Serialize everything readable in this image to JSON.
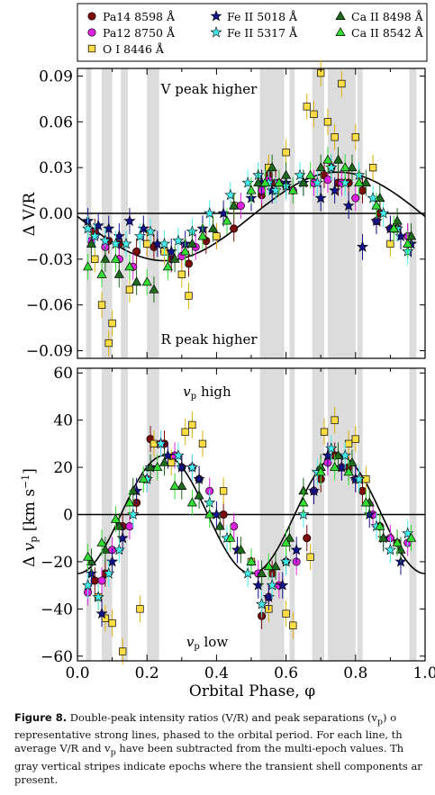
{
  "chart_data": [
    {
      "type": "scatter",
      "panel": "top",
      "ylabel": "Δ V/R",
      "ylim": [
        -0.095,
        0.095
      ],
      "yticks": [
        -0.09,
        -0.06,
        -0.03,
        0.0,
        0.03,
        0.06,
        0.09
      ],
      "xlim": [
        0.0,
        1.0
      ],
      "grid": false,
      "annotations": [
        "V peak higher",
        "R peak higher"
      ],
      "model_curve": {
        "amplitude": 0.029,
        "offset": -0.002,
        "phase_of_max": 0.75
      },
      "series": [
        {
          "name": "Pa14 8598 Å",
          "marker": "circle",
          "color": "#7a0c0c",
          "x": [
            0.05,
            0.09,
            0.12,
            0.17,
            0.22,
            0.27,
            0.32,
            0.37,
            0.45,
            0.53,
            0.55,
            0.57,
            0.6,
            0.68,
            0.71,
            0.73,
            0.75,
            0.78,
            0.82,
            0.87,
            0.92,
            0.95
          ],
          "y": [
            -0.012,
            -0.018,
            -0.02,
            -0.025,
            -0.022,
            -0.03,
            -0.033,
            -0.018,
            -0.01,
            0.012,
            0.025,
            0.02,
            0.018,
            0.02,
            0.025,
            0.03,
            0.02,
            0.02,
            0.015,
            0.0,
            -0.01,
            -0.015
          ]
        },
        {
          "name": "Pa12 8750 Å",
          "marker": "circle",
          "color": "#dd22dd",
          "x": [
            0.04,
            0.08,
            0.12,
            0.16,
            0.2,
            0.25,
            0.3,
            0.34,
            0.4,
            0.47,
            0.53,
            0.55,
            0.58,
            0.62,
            0.68,
            0.72,
            0.76,
            0.8,
            0.86,
            0.9,
            0.95
          ],
          "y": [
            -0.018,
            -0.022,
            -0.03,
            -0.035,
            -0.02,
            -0.025,
            -0.028,
            -0.022,
            -0.015,
            0.005,
            0.015,
            0.022,
            0.02,
            0.015,
            0.02,
            0.022,
            0.02,
            0.01,
            -0.005,
            -0.01,
            -0.015
          ]
        },
        {
          "name": "O I 8446 Å",
          "marker": "square",
          "color": "#ffdd44",
          "x": [
            0.05,
            0.07,
            0.09,
            0.1,
            0.15,
            0.2,
            0.25,
            0.3,
            0.32,
            0.4,
            0.45,
            0.55,
            0.6,
            0.66,
            0.68,
            0.7,
            0.72,
            0.74,
            0.76,
            0.8,
            0.85,
            0.9
          ],
          "y": [
            -0.03,
            -0.06,
            -0.085,
            -0.072,
            -0.05,
            -0.02,
            -0.025,
            -0.04,
            -0.054,
            -0.015,
            0.005,
            0.03,
            0.04,
            0.07,
            0.065,
            0.092,
            0.06,
            0.05,
            0.085,
            0.05,
            0.03,
            -0.02
          ]
        },
        {
          "name": "Fe II 5018 Å",
          "marker": "star",
          "color": "#111188",
          "x": [
            0.03,
            0.06,
            0.09,
            0.12,
            0.15,
            0.19,
            0.23,
            0.27,
            0.31,
            0.36,
            0.42,
            0.5,
            0.53,
            0.56,
            0.6,
            0.65,
            0.7,
            0.74,
            0.78,
            0.82,
            0.86,
            0.9,
            0.93,
            0.96
          ],
          "y": [
            -0.005,
            -0.008,
            -0.01,
            -0.015,
            -0.005,
            -0.01,
            -0.02,
            -0.025,
            -0.02,
            -0.01,
            0.0,
            0.01,
            0.02,
            0.015,
            0.02,
            0.02,
            0.01,
            0.015,
            0.005,
            -0.022,
            -0.005,
            -0.01,
            -0.015,
            -0.02
          ]
        },
        {
          "name": "Fe II 5317 Å",
          "marker": "star",
          "color": "#44eeee",
          "x": [
            0.03,
            0.05,
            0.08,
            0.11,
            0.14,
            0.18,
            0.21,
            0.25,
            0.29,
            0.33,
            0.38,
            0.44,
            0.49,
            0.52,
            0.55,
            0.57,
            0.6,
            0.64,
            0.69,
            0.73,
            0.77,
            0.81,
            0.85,
            0.88,
            0.92,
            0.95
          ],
          "y": [
            -0.01,
            -0.015,
            -0.018,
            -0.02,
            -0.02,
            -0.015,
            -0.012,
            -0.02,
            -0.018,
            -0.012,
            0.0,
            0.012,
            0.02,
            0.025,
            0.02,
            0.015,
            0.018,
            0.025,
            0.02,
            0.03,
            0.02,
            0.025,
            0.01,
            0.0,
            -0.01,
            -0.025
          ]
        },
        {
          "name": "Ca II 8498 Å",
          "marker": "triangle",
          "color": "#1e6b1e",
          "x": [
            0.04,
            0.08,
            0.12,
            0.17,
            0.22,
            0.28,
            0.33,
            0.39,
            0.45,
            0.52,
            0.56,
            0.6,
            0.65,
            0.7,
            0.75,
            0.79,
            0.83,
            0.87,
            0.92,
            0.96
          ],
          "y": [
            -0.02,
            -0.03,
            -0.04,
            -0.045,
            -0.05,
            -0.03,
            -0.02,
            -0.01,
            0.005,
            0.02,
            0.03,
            0.025,
            0.02,
            0.03,
            0.035,
            0.03,
            0.02,
            0.01,
            -0.005,
            -0.015
          ]
        },
        {
          "name": "Ca II 8542 Å",
          "marker": "triangle",
          "color": "#33dd33",
          "x": [
            0.03,
            0.07,
            0.11,
            0.15,
            0.2,
            0.26,
            0.31,
            0.36,
            0.43,
            0.5,
            0.54,
            0.58,
            0.62,
            0.67,
            0.72,
            0.77,
            0.81,
            0.86,
            0.91,
            0.95
          ],
          "y": [
            -0.035,
            -0.04,
            -0.03,
            -0.035,
            -0.045,
            -0.035,
            -0.025,
            -0.015,
            -0.005,
            0.015,
            0.02,
            0.02,
            0.015,
            0.025,
            0.035,
            0.03,
            0.02,
            0.005,
            -0.01,
            -0.02
          ]
        }
      ]
    },
    {
      "type": "scatter",
      "panel": "bottom",
      "ylabel": "Δ v_p [km s⁻¹]",
      "xlabel": "Orbital Phase, φ",
      "ylim": [
        -62,
        62
      ],
      "yticks": [
        -60,
        -40,
        -20,
        0,
        20,
        40,
        60
      ],
      "xlim": [
        0.0,
        1.0
      ],
      "xticks": [
        0.0,
        0.2,
        0.4,
        0.6,
        0.8,
        1.0
      ],
      "grid": false,
      "annotations": [
        "v_p high",
        "v_p low"
      ],
      "model_curve": {
        "amplitude": 25,
        "offset": 0,
        "frequency": 2,
        "phase_of_max": 0.25
      },
      "series": [
        {
          "name": "Pa14 8598 Å",
          "marker": "circle",
          "color": "#7a0c0c",
          "x": [
            0.05,
            0.08,
            0.13,
            0.17,
            0.21,
            0.25,
            0.3,
            0.35,
            0.42,
            0.5,
            0.53,
            0.56,
            0.6,
            0.66,
            0.7,
            0.74,
            0.78,
            0.82,
            0.87,
            0.92
          ],
          "y": [
            -28,
            -25,
            -5,
            5,
            32,
            30,
            20,
            15,
            0,
            -20,
            -43,
            -25,
            -20,
            -10,
            15,
            25,
            20,
            10,
            -5,
            -12
          ]
        },
        {
          "name": "Pa12 8750 Å",
          "marker": "circle",
          "color": "#dd22dd",
          "x": [
            0.03,
            0.07,
            0.1,
            0.15,
            0.2,
            0.24,
            0.28,
            0.33,
            0.38,
            0.45,
            0.52,
            0.55,
            0.58,
            0.63,
            0.68,
            0.72,
            0.76,
            0.8,
            0.85,
            0.9,
            0.95
          ],
          "y": [
            -33,
            -28,
            -15,
            -5,
            15,
            30,
            25,
            20,
            10,
            -5,
            -25,
            -35,
            -30,
            -20,
            10,
            22,
            20,
            15,
            0,
            -10,
            -12
          ]
        },
        {
          "name": "O I 8446 Å",
          "marker": "square",
          "color": "#ffdd44",
          "x": [
            0.06,
            0.08,
            0.1,
            0.13,
            0.18,
            0.22,
            0.27,
            0.31,
            0.33,
            0.36,
            0.42,
            0.5,
            0.55,
            0.6,
            0.62,
            0.67,
            0.71,
            0.74,
            0.78,
            0.8,
            0.83
          ],
          "y": [
            -35,
            -44,
            -46,
            -58,
            -40,
            30,
            22,
            35,
            38,
            30,
            10,
            -20,
            -40,
            -42,
            -47,
            -18,
            35,
            40,
            30,
            32,
            15
          ]
        },
        {
          "name": "Fe II 5018 Å",
          "marker": "star",
          "color": "#111188",
          "x": [
            0.04,
            0.07,
            0.1,
            0.13,
            0.17,
            0.21,
            0.26,
            0.3,
            0.35,
            0.4,
            0.46,
            0.52,
            0.55,
            0.59,
            0.63,
            0.68,
            0.72,
            0.76,
            0.8,
            0.84,
            0.88,
            0.93
          ],
          "y": [
            -25,
            -42,
            -20,
            -10,
            10,
            20,
            25,
            20,
            15,
            0,
            -15,
            -30,
            -35,
            -30,
            -15,
            10,
            25,
            20,
            15,
            0,
            -10,
            -20
          ]
        },
        {
          "name": "Fe II 5317 Å",
          "marker": "star",
          "color": "#44eeee",
          "x": [
            0.03,
            0.06,
            0.09,
            0.12,
            0.16,
            0.2,
            0.24,
            0.29,
            0.33,
            0.38,
            0.43,
            0.49,
            0.53,
            0.56,
            0.6,
            0.65,
            0.69,
            0.73,
            0.77,
            0.81,
            0.86,
            0.9,
            0.95
          ],
          "y": [
            -30,
            -35,
            -25,
            -15,
            0,
            15,
            30,
            25,
            20,
            5,
            -10,
            -25,
            -38,
            -30,
            -20,
            0,
            18,
            28,
            25,
            15,
            -5,
            -15,
            -8
          ]
        },
        {
          "name": "Ca II 8498 Å",
          "marker": "triangle",
          "color": "#1e6b1e",
          "x": [
            0.04,
            0.08,
            0.12,
            0.16,
            0.21,
            0.25,
            0.3,
            0.35,
            0.41,
            0.47,
            0.53,
            0.57,
            0.61,
            0.65,
            0.7,
            0.75,
            0.79,
            0.84,
            0.88,
            0.93
          ],
          "y": [
            -20,
            -15,
            -5,
            10,
            20,
            22,
            12,
            8,
            -5,
            -15,
            -25,
            -22,
            -10,
            10,
            20,
            25,
            22,
            5,
            -10,
            -15
          ]
        },
        {
          "name": "Ca II 8542 Å",
          "marker": "triangle",
          "color": "#33dd33",
          "x": [
            0.03,
            0.07,
            0.11,
            0.15,
            0.19,
            0.23,
            0.28,
            0.33,
            0.38,
            0.44,
            0.5,
            0.55,
            0.6,
            0.65,
            0.7,
            0.74,
            0.78,
            0.83,
            0.87,
            0.92,
            0.96
          ],
          "y": [
            -18,
            -12,
            -2,
            5,
            15,
            20,
            12,
            5,
            0,
            -10,
            -20,
            -22,
            -12,
            5,
            18,
            20,
            18,
            5,
            -5,
            -12,
            -10
          ]
        }
      ]
    }
  ],
  "shell_stripes": [
    [
      0.025,
      0.04
    ],
    [
      0.07,
      0.1
    ],
    [
      0.125,
      0.145
    ],
    [
      0.2,
      0.235
    ],
    [
      0.525,
      0.595
    ],
    [
      0.61,
      0.625
    ],
    [
      0.675,
      0.71
    ],
    [
      0.72,
      0.8
    ],
    [
      0.805,
      0.82
    ],
    [
      0.955,
      0.975
    ]
  ],
  "caption": {
    "label": "Figure 8.",
    "lines": [
      "Double-peak intensity ratios (V/R) and peak separations (v",
      "representative strong lines, phased to the orbital period. For each line, th",
      "average V/R and v",
      "have been subtracted from the multi-epoch values. Th",
      "gray vertical stripes indicate epochs where the transient shell components ar",
      "present."
    ]
  }
}
